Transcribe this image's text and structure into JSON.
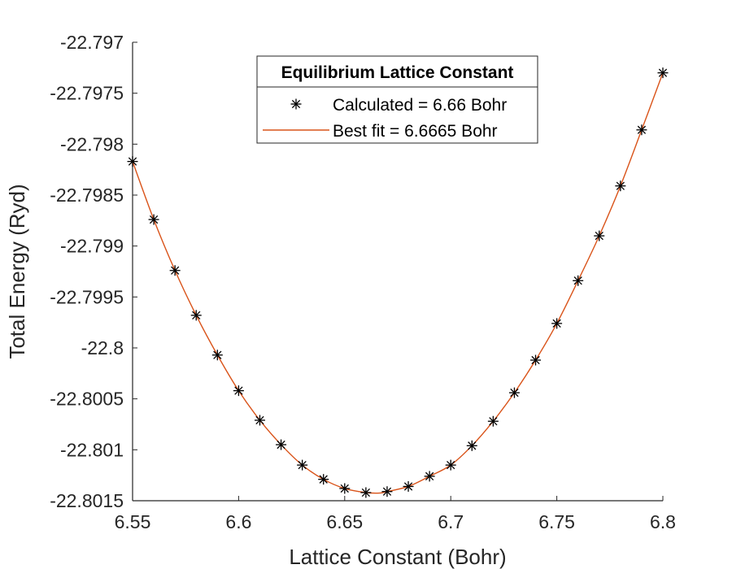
{
  "chart_data": {
    "type": "scatter",
    "xlabel": "Lattice Constant (Bohr)",
    "ylabel": "Total Energy (Ryd)",
    "xlim": [
      6.55,
      6.8
    ],
    "ylim": [
      -22.8015,
      -22.797
    ],
    "xticks": [
      6.55,
      6.6,
      6.65,
      6.7,
      6.75,
      6.8
    ],
    "xtick_labels": [
      "6.55",
      "6.6",
      "6.65",
      "6.7",
      "6.75",
      "6.8"
    ],
    "yticks": [
      -22.797,
      -22.7975,
      -22.798,
      -22.7985,
      -22.799,
      -22.7995,
      -22.8,
      -22.8005,
      -22.801,
      -22.8015
    ],
    "ytick_labels": [
      "-22.797",
      "-22.7975",
      "-22.798",
      "-22.7985",
      "-22.799",
      "-22.7995",
      "-22.8",
      "-22.8005",
      "-22.801",
      "-22.8015"
    ],
    "grid": false,
    "legend": {
      "title": "Equilibrium Lattice Constant",
      "placement": "top-center"
    },
    "series": [
      {
        "name": "Calculated = 6.66 Bohr",
        "marker": "asterisk",
        "color": "#000000",
        "x": [
          6.55,
          6.56,
          6.57,
          6.58,
          6.59,
          6.6,
          6.61,
          6.62,
          6.63,
          6.64,
          6.65,
          6.66,
          6.67,
          6.68,
          6.69,
          6.7,
          6.71,
          6.72,
          6.73,
          6.74,
          6.75,
          6.76,
          6.77,
          6.78,
          6.79,
          6.8
        ],
        "y": [
          -22.79817,
          -22.79874,
          -22.79924,
          -22.79968,
          -22.80007,
          -22.80042,
          -22.80071,
          -22.80095,
          -22.80115,
          -22.80129,
          -22.80138,
          -22.80142,
          -22.80141,
          -22.80136,
          -22.80126,
          -22.80115,
          -22.80096,
          -22.80072,
          -22.80044,
          -22.80012,
          -22.79976,
          -22.79934,
          -22.7989,
          -22.79841,
          -22.79786,
          -22.7973
        ]
      },
      {
        "name": "Best fit = 6.6665 Bohr",
        "marker": "line",
        "color": "#D95319",
        "x": [
          6.55,
          6.56,
          6.57,
          6.58,
          6.59,
          6.6,
          6.61,
          6.62,
          6.63,
          6.64,
          6.65,
          6.66,
          6.6665,
          6.67,
          6.68,
          6.69,
          6.7,
          6.71,
          6.72,
          6.73,
          6.74,
          6.75,
          6.76,
          6.77,
          6.78,
          6.79,
          6.8
        ],
        "y": [
          -22.79817,
          -22.79874,
          -22.79924,
          -22.79968,
          -22.80007,
          -22.80042,
          -22.80071,
          -22.80095,
          -22.80115,
          -22.80129,
          -22.80138,
          -22.80142,
          -22.801425,
          -22.80141,
          -22.80136,
          -22.80126,
          -22.80115,
          -22.80096,
          -22.80072,
          -22.80044,
          -22.80012,
          -22.79976,
          -22.79934,
          -22.7989,
          -22.79841,
          -22.79786,
          -22.7973
        ]
      }
    ]
  }
}
